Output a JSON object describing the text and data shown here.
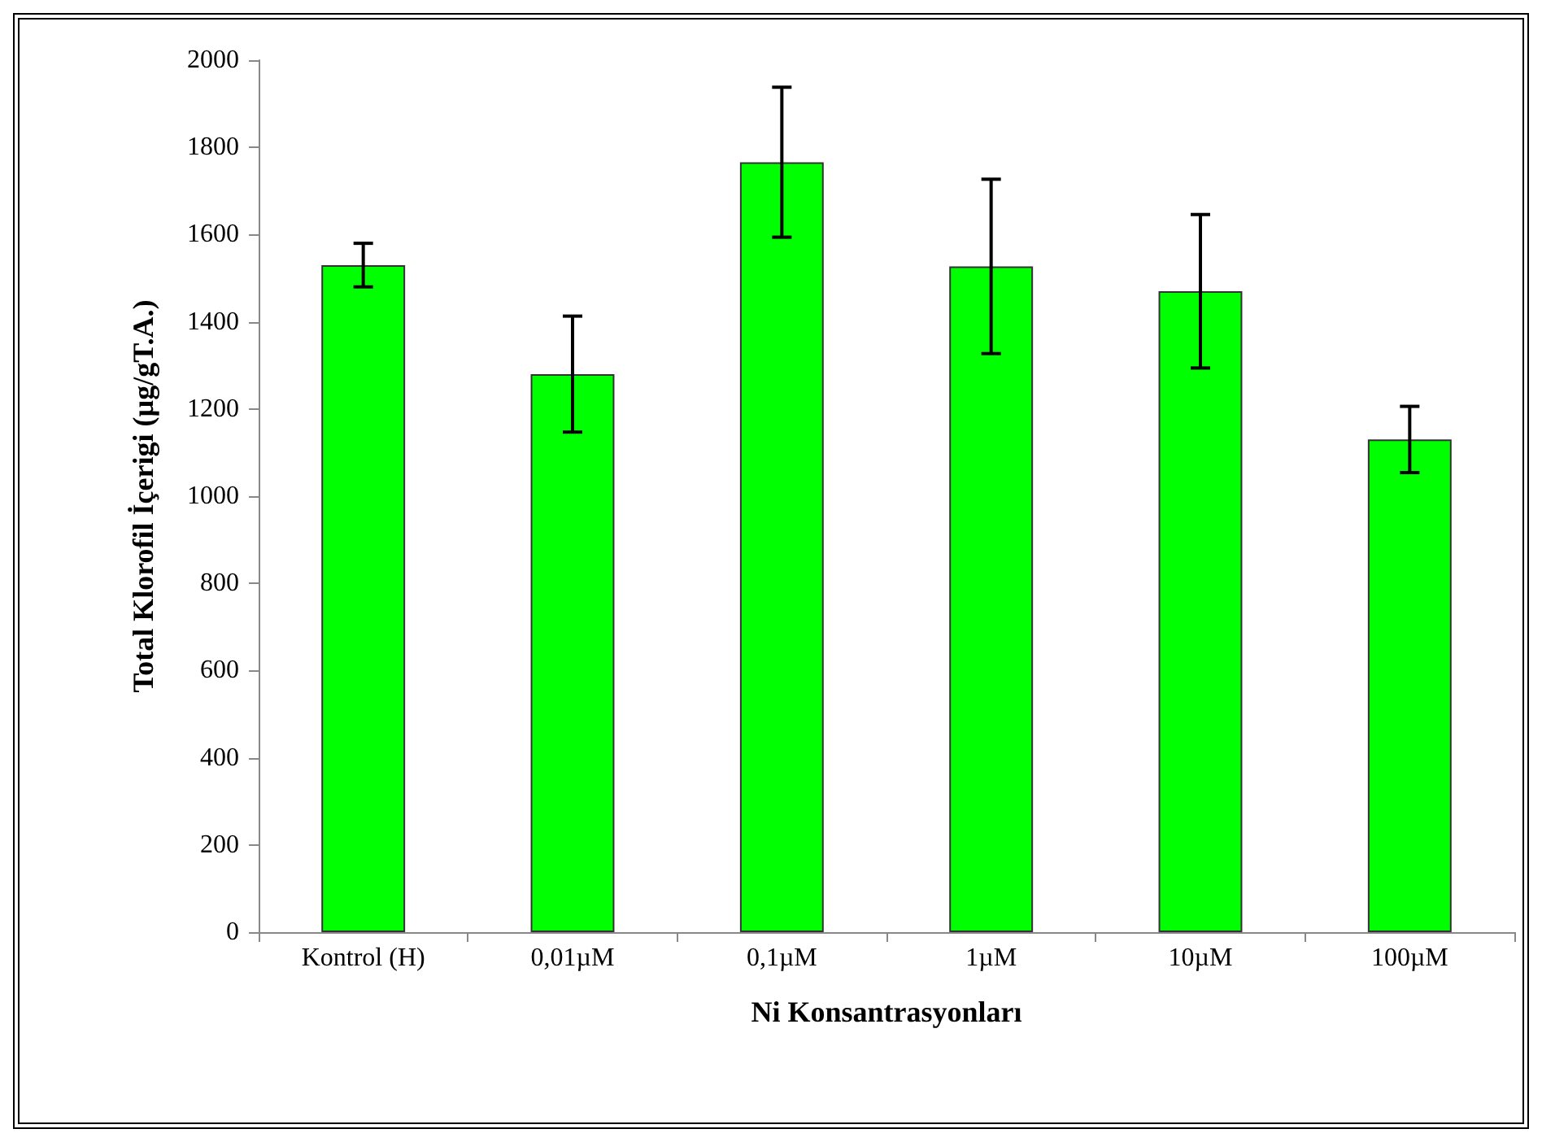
{
  "chart_data": {
    "type": "bar",
    "xlabel": "Ni Konsantrasyonları",
    "ylabel": "Total Klorofil İçerigi (µg/gT.A.)",
    "categories": [
      "Kontrol (H)",
      "0,01µM",
      "0,1µM",
      "1µM",
      "10µM",
      "100µM"
    ],
    "values": [
      1530,
      1280,
      1766,
      1527,
      1470,
      1130
    ],
    "errors": [
      50,
      133,
      172,
      200,
      176,
      76
    ],
    "color": "#00ff00",
    "ylim": [
      0,
      2000
    ],
    "yticks": [
      0,
      200,
      400,
      600,
      800,
      1000,
      1200,
      1400,
      1600,
      1800,
      2000
    ],
    "grid": false
  }
}
